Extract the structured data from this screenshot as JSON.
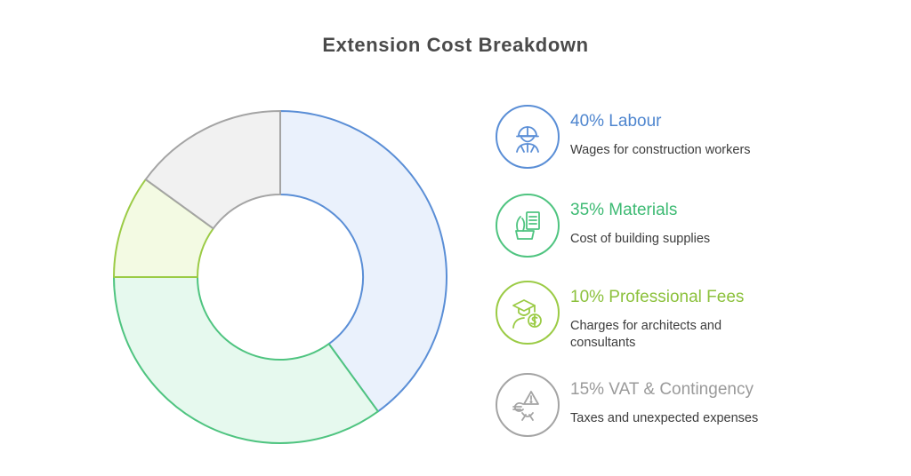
{
  "title": "Extension Cost Breakdown",
  "chart_data": {
    "type": "pie",
    "variant": "donut",
    "title": "Extension Cost Breakdown",
    "slices": [
      {
        "label": "Labour",
        "value": 40,
        "value_label": "40%",
        "description": "Wages for construction workers",
        "fill": "#eaf1fc",
        "stroke": "#5a8ed6",
        "text_color": "#4f86cf",
        "icon": "construction-worker-icon"
      },
      {
        "label": "Materials",
        "value": 35,
        "value_label": "35%",
        "description": "Cost of building supplies",
        "fill": "#e6f9ee",
        "stroke": "#4fc480",
        "text_color": "#3dba73",
        "icon": "building-supplies-icon"
      },
      {
        "label": "Professional Fees",
        "value": 10,
        "value_label": "10%",
        "description": "Charges for architects and consultants",
        "fill": "#f3fae3",
        "stroke": "#9bcb45",
        "text_color": "#8cc13c",
        "icon": "graduate-money-icon"
      },
      {
        "label": "VAT & Contingency",
        "value": 15,
        "value_label": "15%",
        "description": "Taxes and unexpected expenses",
        "fill": "#f1f1f1",
        "stroke": "#a4a4a4",
        "text_color": "#9a9a9a",
        "icon": "currency-warning-icon"
      }
    ]
  },
  "legend": [
    {
      "heading": "40% Labour",
      "description": "Wages for construction workers"
    },
    {
      "heading": "35% Materials",
      "description": "Cost of building supplies"
    },
    {
      "heading": "10% Professional Fees",
      "description": "Charges for architects and consultants"
    },
    {
      "heading": "15% VAT & Contingency",
      "description": "Taxes and unexpected expenses"
    }
  ]
}
